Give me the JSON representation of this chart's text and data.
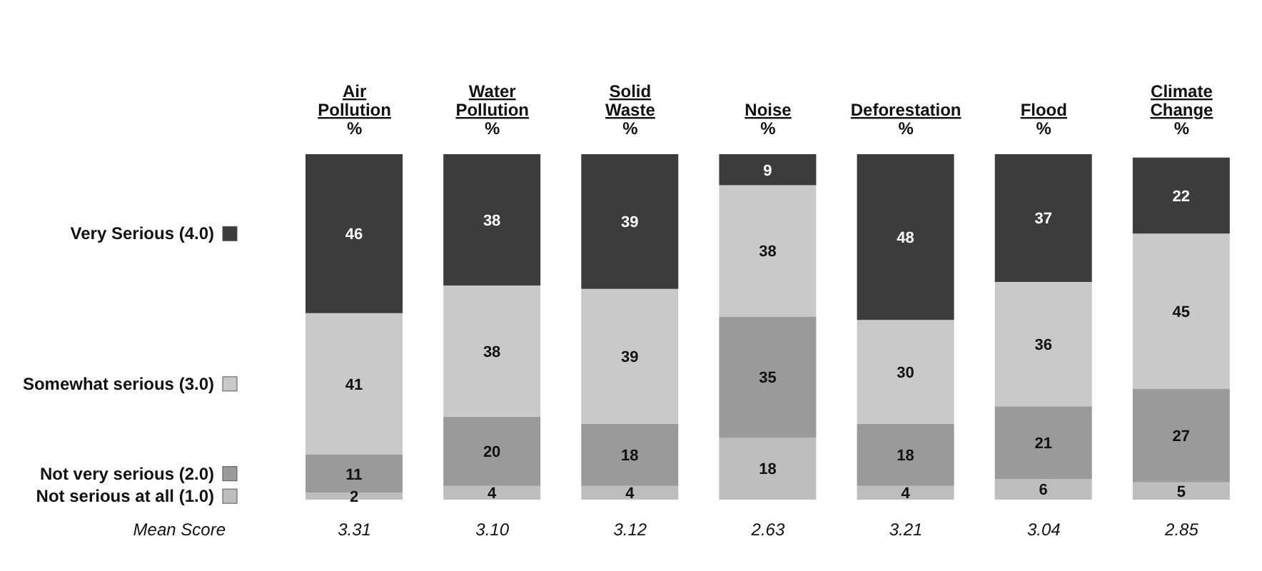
{
  "chart_data": {
    "type": "bar",
    "stacked": true,
    "categories": [
      "Air\nPollution\n%",
      "Water\nPollution\n%",
      "Solid\nWaste\n%",
      "Noise\n%",
      "Deforestation\n%",
      "Flood\n%",
      "Climate\nChange\n%"
    ],
    "series": [
      {
        "name": "Not serious at all (1.0)",
        "color": "#bdbdbd",
        "values": [
          2,
          4,
          4,
          18,
          4,
          6,
          5
        ]
      },
      {
        "name": "Not very serious (2.0)",
        "color": "#9a9a9a",
        "values": [
          11,
          20,
          18,
          35,
          18,
          21,
          27
        ]
      },
      {
        "name": "Somewhat serious (3.0)",
        "color": "#c9c9c9",
        "values": [
          41,
          38,
          39,
          38,
          30,
          36,
          45
        ]
      },
      {
        "name": "Very Serious (4.0)",
        "color": "#3c3c3c",
        "values": [
          46,
          38,
          39,
          9,
          48,
          37,
          22
        ]
      }
    ],
    "ylim": [
      0,
      100
    ],
    "data_labels": true,
    "grid": false,
    "legend": "left",
    "annotations": [
      "Mean Score",
      "3.31",
      "3.10",
      "3.12",
      "2.63",
      "3.21",
      "3.04",
      "2.85"
    ]
  }
}
